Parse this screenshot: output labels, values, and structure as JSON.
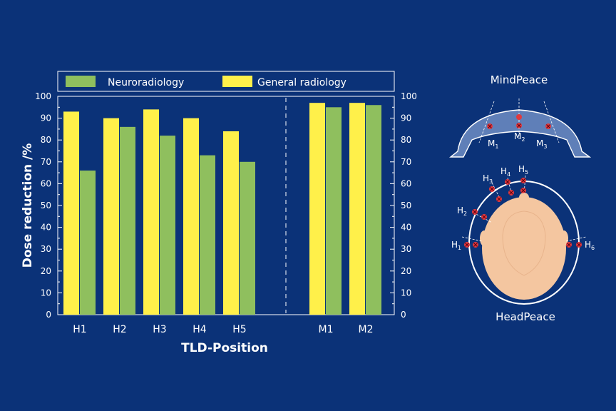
{
  "chart_data": {
    "type": "bar",
    "categories": [
      "H1",
      "H2",
      "H3",
      "H4",
      "H5",
      "M1",
      "M2"
    ],
    "series": [
      {
        "name": "General radiology",
        "color": "#fff04a",
        "values": [
          93,
          90,
          94,
          90,
          84,
          97,
          97
        ]
      },
      {
        "name": "Neuroradiology",
        "color": "#8fbf5e",
        "values": [
          66,
          86,
          82,
          73,
          70,
          95,
          96
        ]
      }
    ],
    "legend": [
      "Neuroradiology",
      "General radiology"
    ],
    "legend_position": "top",
    "xlabel": "TLD-Position",
    "ylabel": "Dose reduction /%",
    "ylim": [
      0,
      100
    ],
    "yticks": [
      0,
      10,
      20,
      30,
      40,
      50,
      60,
      70,
      80,
      90,
      100
    ],
    "secondary_y_axis": true,
    "separator_between": [
      "H5",
      "M1"
    ],
    "grid": false
  },
  "diagram": {
    "mindpeace": {
      "title": "MindPeace",
      "labels": [
        {
          "base": "M",
          "sub": "1"
        },
        {
          "base": "M",
          "sub": "2"
        },
        {
          "base": "M",
          "sub": "3"
        }
      ]
    },
    "headpeace": {
      "title": "HeadPeace",
      "labels": [
        {
          "base": "H",
          "sub": "1"
        },
        {
          "base": "H",
          "sub": "2"
        },
        {
          "base": "H",
          "sub": "3"
        },
        {
          "base": "H",
          "sub": "4"
        },
        {
          "base": "H",
          "sub": "5"
        },
        {
          "base": "H",
          "sub": "6"
        }
      ]
    },
    "colors": {
      "background": "#0b3278",
      "skin": "#f4c6a0",
      "sensor": "#e03a3f",
      "arc_fill": "#5f7fb8"
    }
  }
}
